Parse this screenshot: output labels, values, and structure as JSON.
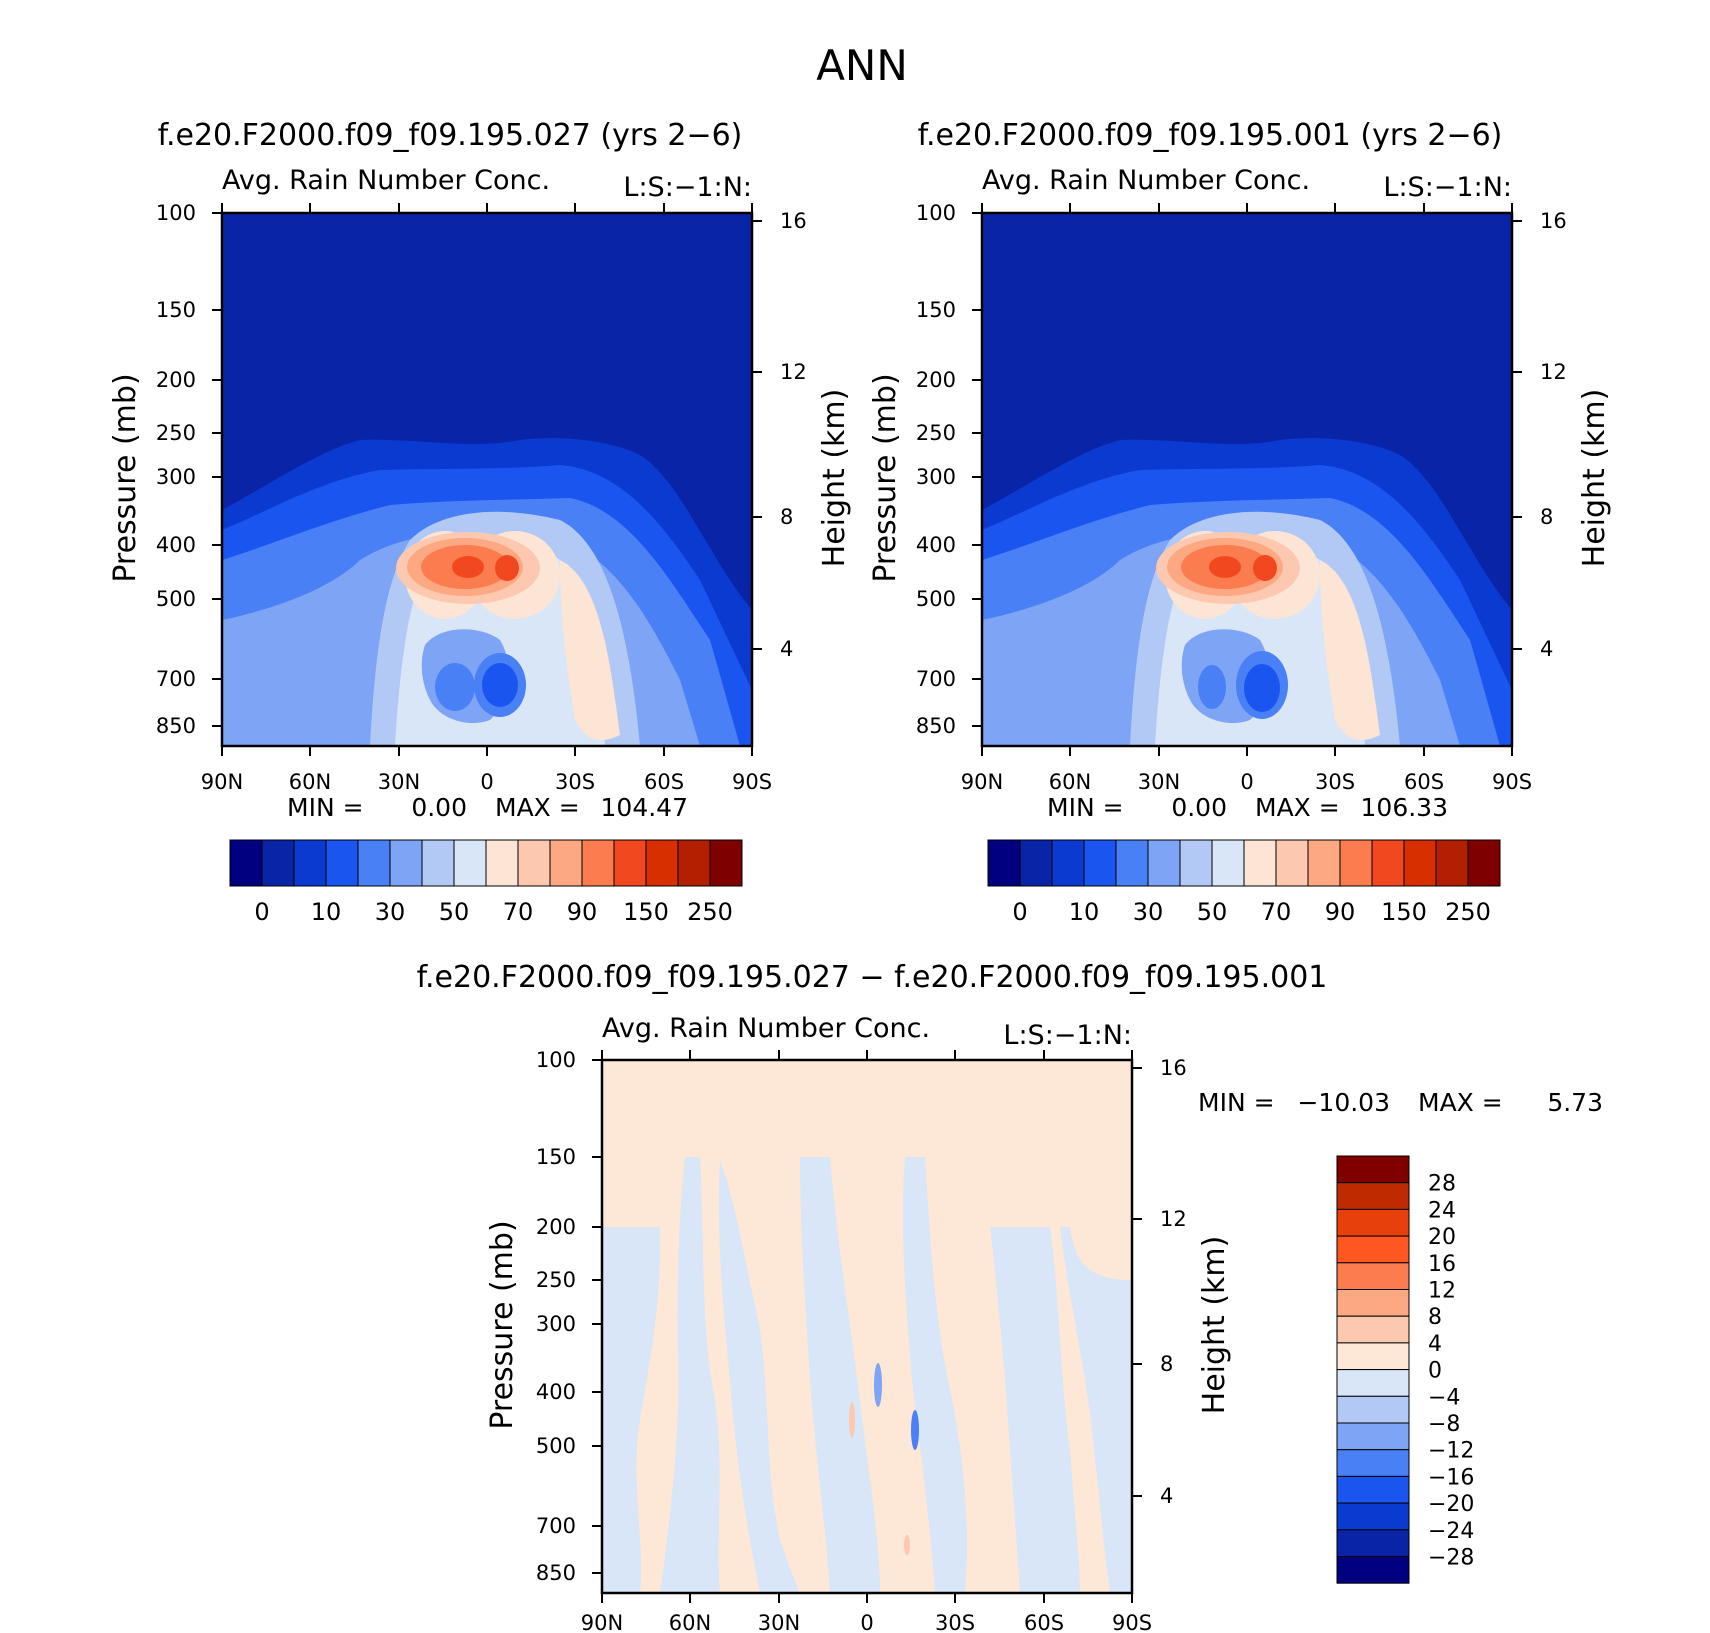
{
  "page": {
    "title": "ANN"
  },
  "palettes": {
    "main": [
      "#000080",
      "#0a24a8",
      "#0b3ad0",
      "#1a55f0",
      "#4a80f5",
      "#7ea4f5",
      "#b2c9f5",
      "#d8e6f7",
      "#fde5d5",
      "#fcc8b0",
      "#fca882",
      "#fb7c4f",
      "#f2481f",
      "#d72f00",
      "#b22000",
      "#7f0000"
    ],
    "diff": [
      "#000080",
      "#0a24a8",
      "#0b3ad0",
      "#1a55f0",
      "#4a80f5",
      "#7ea4f5",
      "#b2c9f5",
      "#d8e6f7",
      "#fde8d7",
      "#fcc8b0",
      "#fca882",
      "#fb7c4f",
      "#ff5722",
      "#e8400c",
      "#c02a00",
      "#800000"
    ]
  },
  "chart_data": [
    {
      "type": "heatmap",
      "title": "f.e20.F2000.f09_f09.195.027 (yrs 2−6)",
      "subtitle": "Avg. Rain Number Conc.",
      "corner_label": "L:S:−1:N:",
      "ylabel": "Pressure (mb)",
      "ylabel_right": "Height (km)",
      "x_ticks": [
        "90N",
        "60N",
        "30N",
        "0",
        "30S",
        "60S",
        "90S"
      ],
      "y_ticks": [
        "100",
        "150",
        "200",
        "250",
        "300",
        "400",
        "500",
        "700",
        "850"
      ],
      "y_ticks_right": [
        "16",
        "12",
        "8",
        "4"
      ],
      "min_label": "MIN =",
      "min_value": "0.00",
      "max_label": "MAX =",
      "max_value": "104.47",
      "colorbar_labels": [
        "0",
        "10",
        "30",
        "50",
        "70",
        "90",
        "150",
        "250"
      ],
      "stats": {
        "min": 0.0,
        "max": 104.47
      }
    },
    {
      "type": "heatmap",
      "title": "f.e20.F2000.f09_f09.195.001 (yrs 2−6)",
      "subtitle": "Avg. Rain Number Conc.",
      "corner_label": "L:S:−1:N:",
      "ylabel": "Pressure (mb)",
      "ylabel_right": "Height (km)",
      "x_ticks": [
        "90N",
        "60N",
        "30N",
        "0",
        "30S",
        "60S",
        "90S"
      ],
      "y_ticks": [
        "100",
        "150",
        "200",
        "250",
        "300",
        "400",
        "500",
        "700",
        "850"
      ],
      "y_ticks_right": [
        "16",
        "12",
        "8",
        "4"
      ],
      "min_label": "MIN =",
      "min_value": "0.00",
      "max_label": "MAX =",
      "max_value": "106.33",
      "colorbar_labels": [
        "0",
        "10",
        "30",
        "50",
        "70",
        "90",
        "150",
        "250"
      ],
      "stats": {
        "min": 0.0,
        "max": 106.33
      }
    },
    {
      "type": "heatmap",
      "title": "f.e20.F2000.f09_f09.195.027 − f.e20.F2000.f09_f09.195.001",
      "subtitle": "Avg. Rain Number Conc.",
      "corner_label": "L:S:−1:N:",
      "ylabel": "Pressure (mb)",
      "ylabel_right": "Height (km)",
      "x_ticks": [
        "90N",
        "60N",
        "30N",
        "0",
        "30S",
        "60S",
        "90S"
      ],
      "y_ticks": [
        "100",
        "150",
        "200",
        "250",
        "300",
        "400",
        "500",
        "700",
        "850"
      ],
      "y_ticks_right": [
        "16",
        "12",
        "8",
        "4"
      ],
      "min_label": "MIN =",
      "min_value": "−10.03",
      "max_label": "MAX =",
      "max_value": "5.73",
      "colorbar_labels": [
        "28",
        "24",
        "20",
        "16",
        "12",
        "8",
        "4",
        "0",
        "−4",
        "−8",
        "−12",
        "−16",
        "−20",
        "−24",
        "−28"
      ],
      "stats": {
        "min": -10.03,
        "max": 5.73
      }
    }
  ]
}
